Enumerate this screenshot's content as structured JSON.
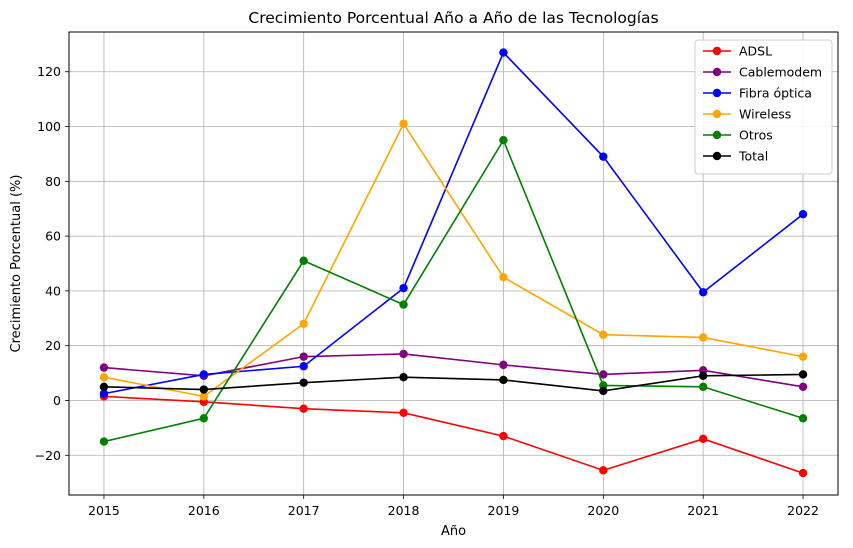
{
  "chart_data": {
    "type": "line",
    "title": "Crecimiento Porcentual Año a Año de las Tecnologías",
    "xlabel": "Año",
    "ylabel": "Crecimiento Porcentual (%)",
    "x": [
      2015,
      2016,
      2017,
      2018,
      2019,
      2020,
      2021,
      2022
    ],
    "xlim": [
      2014.65,
      2022.35
    ],
    "ylim": [
      -34.5,
      134.5
    ],
    "yticks": [
      -20,
      0,
      20,
      40,
      60,
      80,
      100,
      120
    ],
    "ytick_labels": [
      "−20",
      "0",
      "20",
      "40",
      "60",
      "80",
      "100",
      "120"
    ],
    "grid": true,
    "legend_position": "top-right",
    "series": [
      {
        "name": "ADSL",
        "color": "#ff0000",
        "values": [
          1.5,
          -0.5,
          -3,
          -4.5,
          -13,
          -25.5,
          -14,
          -26.5
        ]
      },
      {
        "name": "Cablemodem",
        "color": "#800080",
        "values": [
          12,
          9,
          16,
          17,
          13,
          9.5,
          11,
          5
        ]
      },
      {
        "name": "Fibra óptica",
        "color": "#0000ff",
        "values": [
          2.5,
          9.5,
          12.5,
          41,
          127,
          89,
          39.5,
          68
        ]
      },
      {
        "name": "Wireless",
        "color": "#ffa500",
        "values": [
          8.5,
          1.5,
          28,
          101,
          45,
          24,
          23,
          16
        ]
      },
      {
        "name": "Otros",
        "color": "#008000",
        "values": [
          -15,
          -6.5,
          51,
          35,
          95,
          5.5,
          5,
          -6.5
        ]
      },
      {
        "name": "Total",
        "color": "#000000",
        "values": [
          5,
          4,
          6.5,
          8.5,
          7.5,
          3.5,
          9,
          9.5
        ]
      }
    ]
  }
}
